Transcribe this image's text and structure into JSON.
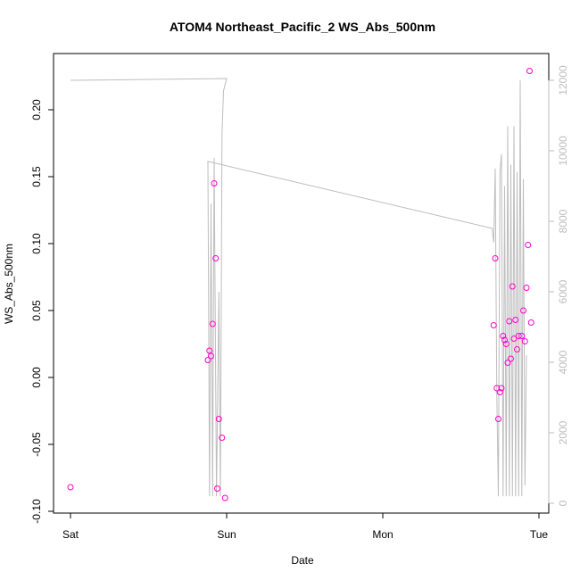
{
  "chart_data": {
    "type": "scatter",
    "title": "ATOM4 Northeast_Pacific_2 WS_Abs_500nm",
    "xlabel": "Date",
    "ylabel": "WS_Abs_500nm",
    "x_ticks": [
      "Sat",
      "Sun",
      "Mon",
      "Tue"
    ],
    "y_ticks": [
      "-0.10",
      "-0.05",
      "0.00",
      "0.05",
      "0.10",
      "0.15",
      "0.20"
    ],
    "y_right_ticks": [
      "0",
      "2000",
      "4000",
      "6000",
      "8000",
      "10000",
      "12000"
    ],
    "xlim": [
      0,
      3.05
    ],
    "ylim": [
      -0.1,
      0.23
    ],
    "y_right_lim": [
      0,
      12000
    ],
    "grid": false,
    "colors": {
      "points": "#ff00cc",
      "line": "#bdbdbd",
      "axis": "#000000",
      "right_axis": "#bdbdbd"
    },
    "series": [
      {
        "points": [
          [
            0.0,
            -0.082
          ],
          [
            0.88,
            0.013
          ],
          [
            0.89,
            0.02
          ],
          [
            0.9,
            0.016
          ],
          [
            0.91,
            0.04
          ],
          [
            0.92,
            0.145
          ],
          [
            0.93,
            0.089
          ],
          [
            0.94,
            -0.083
          ],
          [
            0.95,
            -0.031
          ],
          [
            0.97,
            -0.045
          ],
          [
            0.99,
            -0.09
          ],
          [
            2.71,
            0.039
          ],
          [
            2.72,
            0.089
          ],
          [
            2.73,
            -0.008
          ],
          [
            2.74,
            -0.031
          ],
          [
            2.75,
            -0.011
          ],
          [
            2.76,
            -0.008
          ],
          [
            2.77,
            0.031
          ],
          [
            2.78,
            0.028
          ],
          [
            2.79,
            0.025
          ],
          [
            2.8,
            0.011
          ],
          [
            2.81,
            0.042
          ],
          [
            2.82,
            0.014
          ],
          [
            2.83,
            0.068
          ],
          [
            2.84,
            0.029
          ],
          [
            2.85,
            0.043
          ],
          [
            2.86,
            0.021
          ],
          [
            2.87,
            0.031
          ],
          [
            2.89,
            0.031
          ],
          [
            2.9,
            0.05
          ],
          [
            2.91,
            0.027
          ],
          [
            2.92,
            0.067
          ],
          [
            2.93,
            0.099
          ],
          [
            2.94,
            0.229
          ],
          [
            2.95,
            0.041
          ]
        ]
      },
      {
        "axis": "right",
        "points": [
          [
            0.0,
            12000
          ],
          [
            1.0,
            12050
          ],
          [
            0.98,
            11700
          ],
          [
            0.97,
            10500
          ],
          [
            0.96,
            200
          ],
          [
            0.95,
            6000
          ],
          [
            0.935,
            200
          ],
          [
            0.92,
            9800
          ],
          [
            0.91,
            200
          ],
          [
            0.9,
            8500
          ],
          [
            0.89,
            200
          ],
          [
            0.88,
            9700
          ],
          [
            2.7,
            7800
          ],
          [
            2.71,
            7400
          ],
          [
            2.72,
            9500
          ],
          [
            2.73,
            3000
          ],
          [
            2.74,
            200
          ],
          [
            2.75,
            9400
          ],
          [
            2.76,
            9900
          ],
          [
            2.77,
            200
          ],
          [
            2.78,
            9000
          ],
          [
            2.79,
            200
          ],
          [
            2.8,
            10700
          ],
          [
            2.81,
            200
          ],
          [
            2.82,
            9600
          ],
          [
            2.83,
            200
          ],
          [
            2.84,
            10700
          ],
          [
            2.85,
            200
          ],
          [
            2.86,
            9400
          ],
          [
            2.87,
            200
          ],
          [
            2.88,
            12000
          ],
          [
            2.89,
            200
          ],
          [
            2.9,
            9200
          ],
          [
            2.91,
            500
          ],
          [
            2.92,
            4200
          ]
        ]
      }
    ]
  }
}
